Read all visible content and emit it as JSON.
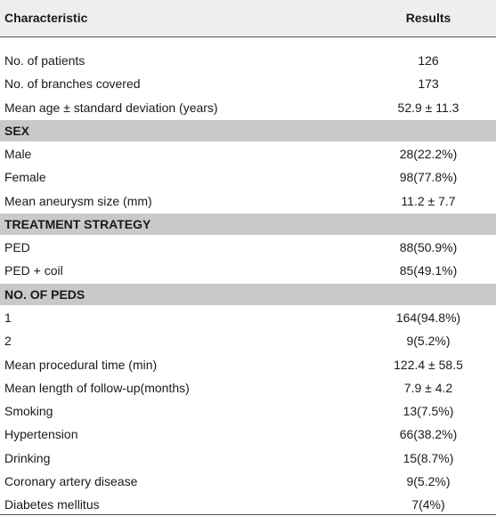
{
  "table": {
    "header": {
      "characteristic": "Characteristic",
      "results": "Results"
    },
    "rows": [
      {
        "label": "No. of patients",
        "result": "126"
      },
      {
        "label": "No. of branches covered",
        "result": "173"
      },
      {
        "label": "Mean age ± standard deviation (years)",
        "result": "52.9 ± 11.3"
      },
      {
        "label": "SEX",
        "section": true
      },
      {
        "label": "Male",
        "result": "28(22.2%)"
      },
      {
        "label": "Female",
        "result": "98(77.8%)"
      },
      {
        "label": "Mean aneurysm size (mm)",
        "result": "11.2 ± 7.7"
      },
      {
        "label": "TREATMENT STRATEGY",
        "section": true
      },
      {
        "label": "PED",
        "result": "88(50.9%)"
      },
      {
        "label": "PED + coil",
        "result": "85(49.1%)"
      },
      {
        "label": "NO. OF PEDS",
        "section": true
      },
      {
        "label": "1",
        "result": "164(94.8%)"
      },
      {
        "label": "2",
        "result": "9(5.2%)"
      },
      {
        "label": "Mean procedural time (min)",
        "result": "122.4 ± 58.5"
      },
      {
        "label": "Mean length of follow-up(months)",
        "result": "7.9 ± 4.2"
      },
      {
        "label": "Smoking",
        "result": "13(7.5%)"
      },
      {
        "label": "Hypertension",
        "result": "66(38.2%)"
      },
      {
        "label": "Drinking",
        "result": "15(8.7%)"
      },
      {
        "label": "Coronary artery disease",
        "result": "9(5.2%)"
      },
      {
        "label": "Diabetes mellitus",
        "result": "7(4%)"
      }
    ]
  }
}
